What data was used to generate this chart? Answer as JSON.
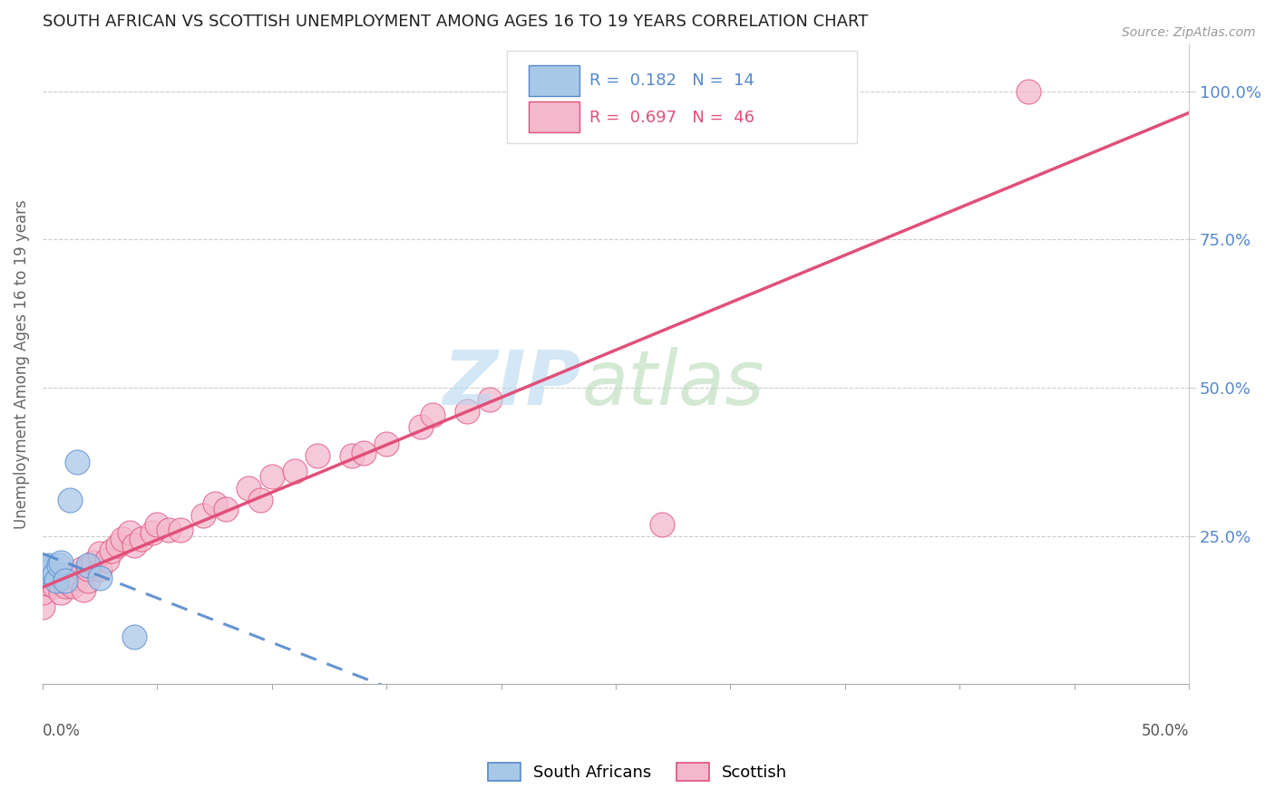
{
  "title": "SOUTH AFRICAN VS SCOTTISH UNEMPLOYMENT AMONG AGES 16 TO 19 YEARS CORRELATION CHART",
  "source": "Source: ZipAtlas.com",
  "ylabel": "Unemployment Among Ages 16 to 19 years",
  "ylabel_right_ticks": [
    "25.0%",
    "50.0%",
    "75.0%",
    "100.0%"
  ],
  "ylabel_right_vals": [
    0.25,
    0.5,
    0.75,
    1.0
  ],
  "xmin": 0.0,
  "xmax": 0.5,
  "ymin": 0.0,
  "ymax": 1.08,
  "sa_color": "#a8c8e8",
  "sc_color": "#f4b8cc",
  "sa_line_color": "#5588cc",
  "sc_line_color": "#e0507a",
  "sa_R": 0.182,
  "sa_N": 14,
  "sc_R": 0.697,
  "sc_N": 46,
  "sa_points_x": [
    0.0,
    0.0,
    0.002,
    0.003,
    0.005,
    0.006,
    0.007,
    0.008,
    0.01,
    0.012,
    0.015,
    0.02,
    0.025,
    0.04
  ],
  "sa_points_y": [
    0.185,
    0.195,
    0.19,
    0.2,
    0.185,
    0.175,
    0.2,
    0.205,
    0.175,
    0.31,
    0.375,
    0.2,
    0.18,
    0.08
  ],
  "sc_points_x": [
    0.0,
    0.0,
    0.002,
    0.005,
    0.007,
    0.008,
    0.01,
    0.01,
    0.012,
    0.013,
    0.015,
    0.017,
    0.018,
    0.02,
    0.02,
    0.022,
    0.025,
    0.025,
    0.028,
    0.03,
    0.033,
    0.035,
    0.038,
    0.04,
    0.043,
    0.048,
    0.05,
    0.055,
    0.06,
    0.07,
    0.075,
    0.08,
    0.09,
    0.095,
    0.1,
    0.11,
    0.12,
    0.135,
    0.14,
    0.15,
    0.165,
    0.17,
    0.185,
    0.195,
    0.27,
    0.43
  ],
  "sc_points_y": [
    0.13,
    0.155,
    0.17,
    0.165,
    0.175,
    0.155,
    0.165,
    0.185,
    0.17,
    0.165,
    0.18,
    0.195,
    0.16,
    0.175,
    0.195,
    0.205,
    0.195,
    0.22,
    0.21,
    0.225,
    0.235,
    0.245,
    0.255,
    0.235,
    0.245,
    0.255,
    0.27,
    0.26,
    0.26,
    0.285,
    0.305,
    0.295,
    0.33,
    0.31,
    0.35,
    0.36,
    0.385,
    0.385,
    0.39,
    0.405,
    0.435,
    0.455,
    0.46,
    0.48,
    0.27,
    1.0
  ]
}
